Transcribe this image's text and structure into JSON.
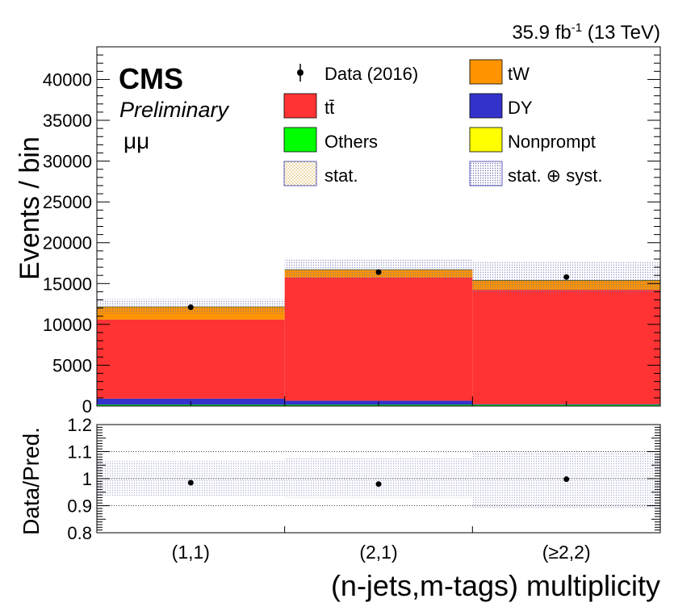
{
  "header": {
    "lumi_main": "35.9 fb",
    "lumi_sup": "-1",
    "lumi_energy": " (13 TeV)",
    "experiment": "CMS",
    "status": "Preliminary",
    "channel": "μμ"
  },
  "colors": {
    "ttbar": "#ff3333",
    "tw": "#ff9400",
    "dy": "#3333cc",
    "others": "#00ff00",
    "nonprompt": "#ffff00",
    "data": "#000000",
    "stat_band": "#e8c98a",
    "syst_band": "#8c8fc0"
  },
  "legend": {
    "data": "Data (2016)",
    "ttbar": "tt̄",
    "tw": "tW",
    "dy": "DY",
    "others": "Others",
    "nonprompt": "Nonprompt",
    "stat": "stat.",
    "stat_syst": "stat. ⊕ syst."
  },
  "chart_data": [
    {
      "type": "bar",
      "stacked": true,
      "categories": [
        "(1,1)",
        "(2,1)",
        "(≥2,2)"
      ],
      "ylabel": "Events / bin",
      "ylim": [
        0,
        44000
      ],
      "yticks": [
        0,
        5000,
        10000,
        15000,
        20000,
        25000,
        30000,
        35000,
        40000
      ],
      "series": [
        {
          "name": "Others",
          "values": [
            150,
            150,
            150
          ]
        },
        {
          "name": "DY",
          "values": [
            750,
            500,
            80
          ]
        },
        {
          "name": "tt̄",
          "values": [
            9700,
            15100,
            14000
          ]
        },
        {
          "name": "tW",
          "values": [
            1500,
            900,
            1100
          ]
        },
        {
          "name": "Nonprompt",
          "values": [
            50,
            50,
            50
          ]
        }
      ],
      "data": {
        "name": "Data (2016)",
        "values": [
          12100,
          16400,
          15800
        ]
      },
      "uncertainty": {
        "stat_syst_lo": [
          11300,
          15500,
          13900
        ],
        "stat_syst_hi": [
          13100,
          18000,
          17600
        ]
      }
    },
    {
      "type": "scatter",
      "categories": [
        "(1,1)",
        "(2,1)",
        "(≥2,2)"
      ],
      "ylabel": "Data/Pred.",
      "xlabel": "(n-jets,m-tags) multiplicity",
      "ylim": [
        0.8,
        1.2
      ],
      "yticks": [
        "0.8",
        "0.9",
        "1",
        "1.1",
        "1.2"
      ],
      "values": [
        0.985,
        0.98,
        0.998
      ],
      "uncertainty": {
        "lo": [
          0.935,
          0.93,
          0.89
        ],
        "hi": [
          1.065,
          1.075,
          1.1
        ]
      },
      "grid": true
    }
  ]
}
